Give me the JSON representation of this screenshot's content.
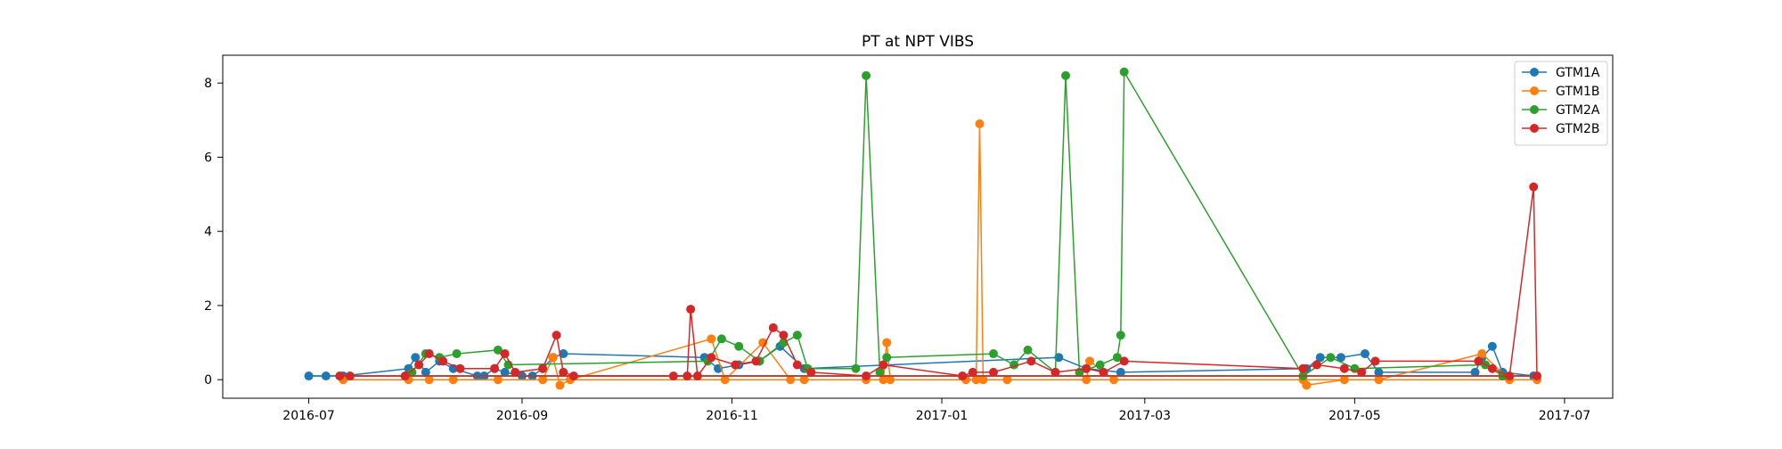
{
  "chart_data": {
    "type": "line",
    "title": "PT at NPT VIBS",
    "xlabel": "",
    "ylabel": "",
    "xlim": [
      "2016-06-06",
      "2017-07-15"
    ],
    "ylim": [
      -0.5,
      8.75
    ],
    "xticks": [
      "2016-07",
      "2016-09",
      "2016-11",
      "2017-01",
      "2017-03",
      "2017-05",
      "2017-07"
    ],
    "yticks": [
      0,
      2,
      4,
      6,
      8
    ],
    "grid": false,
    "legend_position": "top-right",
    "series": [
      {
        "name": "GTM1A",
        "color": "#1f77b4",
        "points": [
          [
            "2016-07-01",
            0.1
          ],
          [
            "2016-07-06",
            0.1
          ],
          [
            "2016-07-11",
            0.1
          ],
          [
            "2016-07-30",
            0.3
          ],
          [
            "2016-08-01",
            0.6
          ],
          [
            "2016-08-04",
            0.2
          ],
          [
            "2016-08-08",
            0.5
          ],
          [
            "2016-08-12",
            0.3
          ],
          [
            "2016-08-19",
            0.1
          ],
          [
            "2016-08-21",
            0.1
          ],
          [
            "2016-08-24",
            0.3
          ],
          [
            "2016-08-27",
            0.2
          ],
          [
            "2016-09-01",
            0.1
          ],
          [
            "2016-09-04",
            0.1
          ],
          [
            "2016-09-07",
            0.3
          ],
          [
            "2016-09-10",
            0.6
          ],
          [
            "2016-09-13",
            0.7
          ],
          [
            "2016-10-24",
            0.6
          ],
          [
            "2016-10-28",
            0.3
          ],
          [
            "2016-11-03",
            0.4
          ],
          [
            "2016-11-09",
            0.5
          ],
          [
            "2016-11-15",
            0.9
          ],
          [
            "2016-11-22",
            0.3
          ],
          [
            "2017-02-04",
            0.6
          ],
          [
            "2017-02-12",
            0.3
          ],
          [
            "2017-02-22",
            0.2
          ],
          [
            "2017-04-17",
            0.3
          ],
          [
            "2017-04-21",
            0.6
          ],
          [
            "2017-04-27",
            0.6
          ],
          [
            "2017-05-04",
            0.7
          ],
          [
            "2017-05-08",
            0.2
          ],
          [
            "2017-06-05",
            0.2
          ],
          [
            "2017-06-07",
            0.6
          ],
          [
            "2017-06-10",
            0.9
          ],
          [
            "2017-06-13",
            0.2
          ],
          [
            "2017-06-22",
            0.1
          ]
        ]
      },
      {
        "name": "GTM1B",
        "color": "#ff7f0e",
        "points": [
          [
            "2016-07-11",
            0.0
          ],
          [
            "2016-07-30",
            0.0
          ],
          [
            "2016-08-05",
            0.0
          ],
          [
            "2016-08-12",
            0.0
          ],
          [
            "2016-08-25",
            0.0
          ],
          [
            "2016-09-07",
            0.0
          ],
          [
            "2016-09-10",
            0.6
          ],
          [
            "2016-09-12",
            -0.15
          ],
          [
            "2016-09-15",
            0.0
          ],
          [
            "2016-10-26",
            1.1
          ],
          [
            "2016-10-30",
            0.0
          ],
          [
            "2016-11-10",
            1.0
          ],
          [
            "2016-11-18",
            0.0
          ],
          [
            "2016-11-22",
            0.0
          ],
          [
            "2016-12-10",
            0.0
          ],
          [
            "2016-12-15",
            0.0
          ],
          [
            "2016-12-16",
            1.0
          ],
          [
            "2016-12-17",
            0.0
          ],
          [
            "2017-01-08",
            0.0
          ],
          [
            "2017-01-11",
            0.0
          ],
          [
            "2017-01-12",
            6.9
          ],
          [
            "2017-01-13",
            0.0
          ],
          [
            "2017-01-20",
            0.0
          ],
          [
            "2017-02-12",
            0.0
          ],
          [
            "2017-02-13",
            0.5
          ],
          [
            "2017-02-20",
            0.0
          ],
          [
            "2017-04-16",
            0.0
          ],
          [
            "2017-04-17",
            -0.15
          ],
          [
            "2017-04-28",
            0.0
          ],
          [
            "2017-05-08",
            0.0
          ],
          [
            "2017-06-07",
            0.7
          ],
          [
            "2017-06-15",
            0.0
          ],
          [
            "2017-06-23",
            0.0
          ]
        ]
      },
      {
        "name": "GTM2A",
        "color": "#2ca02c",
        "points": [
          [
            "2016-07-31",
            0.2
          ],
          [
            "2016-08-04",
            0.7
          ],
          [
            "2016-08-08",
            0.6
          ],
          [
            "2016-08-13",
            0.7
          ],
          [
            "2016-08-25",
            0.8
          ],
          [
            "2016-08-28",
            0.4
          ],
          [
            "2016-10-25",
            0.5
          ],
          [
            "2016-10-29",
            1.1
          ],
          [
            "2016-11-03",
            0.9
          ],
          [
            "2016-11-09",
            0.5
          ],
          [
            "2016-11-16",
            1.0
          ],
          [
            "2016-11-20",
            1.2
          ],
          [
            "2016-11-23",
            0.3
          ],
          [
            "2016-12-07",
            0.3
          ],
          [
            "2016-12-10",
            8.2
          ],
          [
            "2016-12-14",
            0.2
          ],
          [
            "2016-12-16",
            0.6
          ],
          [
            "2017-01-16",
            0.7
          ],
          [
            "2017-01-22",
            0.4
          ],
          [
            "2017-01-26",
            0.8
          ],
          [
            "2017-02-03",
            0.2
          ],
          [
            "2017-02-06",
            8.2
          ],
          [
            "2017-02-10",
            0.2
          ],
          [
            "2017-02-16",
            0.4
          ],
          [
            "2017-02-21",
            0.6
          ],
          [
            "2017-02-22",
            1.2
          ],
          [
            "2017-02-23",
            8.3
          ],
          [
            "2017-04-16",
            0.1
          ],
          [
            "2017-04-24",
            0.6
          ],
          [
            "2017-05-01",
            0.3
          ],
          [
            "2017-06-08",
            0.4
          ],
          [
            "2017-06-13",
            0.1
          ]
        ]
      },
      {
        "name": "GTM2B",
        "color": "#d62728",
        "points": [
          [
            "2016-07-10",
            0.1
          ],
          [
            "2016-07-13",
            0.1
          ],
          [
            "2016-07-29",
            0.1
          ],
          [
            "2016-08-02",
            0.4
          ],
          [
            "2016-08-05",
            0.7
          ],
          [
            "2016-08-09",
            0.5
          ],
          [
            "2016-08-14",
            0.3
          ],
          [
            "2016-08-24",
            0.3
          ],
          [
            "2016-08-27",
            0.7
          ],
          [
            "2016-08-30",
            0.2
          ],
          [
            "2016-09-07",
            0.3
          ],
          [
            "2016-09-11",
            1.2
          ],
          [
            "2016-09-13",
            0.2
          ],
          [
            "2016-09-16",
            0.1
          ],
          [
            "2016-10-15",
            0.1
          ],
          [
            "2016-10-19",
            0.1
          ],
          [
            "2016-10-20",
            1.9
          ],
          [
            "2016-10-22",
            0.1
          ],
          [
            "2016-10-26",
            0.6
          ],
          [
            "2016-11-02",
            0.4
          ],
          [
            "2016-11-08",
            0.5
          ],
          [
            "2016-11-13",
            1.4
          ],
          [
            "2016-11-16",
            1.2
          ],
          [
            "2016-11-20",
            0.4
          ],
          [
            "2016-11-24",
            0.2
          ],
          [
            "2016-12-10",
            0.1
          ],
          [
            "2016-12-15",
            0.4
          ],
          [
            "2017-01-07",
            0.1
          ],
          [
            "2017-01-10",
            0.2
          ],
          [
            "2017-01-16",
            0.2
          ],
          [
            "2017-01-27",
            0.5
          ],
          [
            "2017-02-03",
            0.2
          ],
          [
            "2017-02-12",
            0.3
          ],
          [
            "2017-02-17",
            0.2
          ],
          [
            "2017-02-23",
            0.5
          ],
          [
            "2017-04-16",
            0.3
          ],
          [
            "2017-04-20",
            0.4
          ],
          [
            "2017-04-28",
            0.3
          ],
          [
            "2017-05-03",
            0.2
          ],
          [
            "2017-05-07",
            0.5
          ],
          [
            "2017-06-06",
            0.5
          ],
          [
            "2017-06-10",
            0.3
          ],
          [
            "2017-06-15",
            0.1
          ],
          [
            "2017-06-22",
            5.2
          ],
          [
            "2017-06-23",
            0.1
          ]
        ]
      }
    ],
    "legend": [
      "GTM1A",
      "GTM1B",
      "GTM2A",
      "GTM2B"
    ],
    "baseline": 0.1
  }
}
